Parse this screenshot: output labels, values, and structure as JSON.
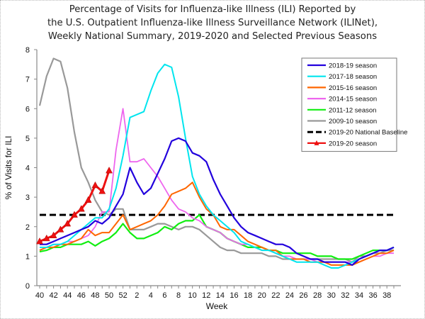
{
  "chart_data": {
    "type": "line",
    "title": [
      "Percentage of Visits for Influenza-like Illness (ILI) Reported by",
      "the U.S. Outpatient Influenza-like Illness Surveillance Network (ILINet),",
      "Weekly National Summary, 2019-2020 and Selected Previous Seasons"
    ],
    "xlabel": "Week",
    "ylabel": "% of Visits for ILI",
    "ylim": [
      0,
      8
    ],
    "yticks": [
      "0",
      "1",
      "2",
      "3",
      "4",
      "5",
      "6",
      "7",
      "8"
    ],
    "x": [
      40,
      41,
      42,
      43,
      44,
      45,
      46,
      47,
      48,
      49,
      50,
      51,
      52,
      1,
      2,
      3,
      4,
      5,
      6,
      7,
      8,
      9,
      10,
      11,
      12,
      13,
      14,
      15,
      16,
      17,
      18,
      19,
      20,
      21,
      22,
      23,
      24,
      25,
      26,
      27,
      28,
      29,
      30,
      31,
      32,
      33,
      34,
      35,
      36,
      37,
      38,
      39
    ],
    "xtick_labels": [
      "40",
      "42",
      "44",
      "46",
      "48",
      "50",
      "52",
      "2",
      "4",
      "6",
      "8",
      "10",
      "12",
      "14",
      "16",
      "18",
      "20",
      "22",
      "24",
      "26",
      "28",
      "30",
      "32",
      "34",
      "36",
      "38"
    ],
    "legend_position": "top-right",
    "series": [
      {
        "name": "2018-19 season",
        "color": "#2200dd",
        "width": 2.2,
        "values": [
          1.4,
          1.4,
          1.5,
          1.6,
          1.7,
          1.8,
          1.9,
          2.0,
          2.2,
          2.1,
          2.3,
          2.7,
          3.1,
          4.0,
          3.5,
          3.1,
          3.3,
          3.8,
          4.3,
          4.9,
          5.0,
          4.9,
          4.5,
          4.4,
          4.2,
          3.6,
          3.1,
          2.7,
          2.3,
          2.0,
          1.8,
          1.7,
          1.6,
          1.5,
          1.4,
          1.4,
          1.3,
          1.1,
          1.0,
          0.9,
          0.9,
          0.8,
          0.8,
          0.8,
          0.8,
          0.7,
          0.9,
          1.0,
          1.1,
          1.2,
          1.2,
          1.3
        ]
      },
      {
        "name": "2017-18 season",
        "color": "#00e5ee",
        "width": 2.0,
        "values": [
          1.3,
          1.3,
          1.4,
          1.4,
          1.5,
          1.7,
          1.9,
          2.1,
          2.3,
          2.3,
          2.6,
          3.3,
          4.4,
          5.7,
          5.8,
          5.9,
          6.6,
          7.2,
          7.5,
          7.4,
          6.4,
          5.0,
          3.7,
          3.1,
          2.7,
          2.4,
          2.2,
          2.0,
          1.8,
          1.5,
          1.4,
          1.3,
          1.2,
          1.2,
          1.1,
          1.0,
          0.9,
          0.8,
          0.8,
          0.8,
          0.8,
          0.7,
          0.6,
          0.6,
          0.7,
          0.8,
          0.9,
          1.0,
          1.1,
          1.2,
          1.2,
          1.3
        ]
      },
      {
        "name": "2015-16 season",
        "color": "#ff6600",
        "width": 2.0,
        "values": [
          1.2,
          1.3,
          1.3,
          1.4,
          1.4,
          1.5,
          1.6,
          1.9,
          1.7,
          1.8,
          1.8,
          2.1,
          2.4,
          1.9,
          2.0,
          2.1,
          2.2,
          2.4,
          2.7,
          3.1,
          3.2,
          3.3,
          3.5,
          3.0,
          2.6,
          2.4,
          2.0,
          1.9,
          1.9,
          1.7,
          1.5,
          1.4,
          1.3,
          1.2,
          1.2,
          1.0,
          0.9,
          0.9,
          0.9,
          0.8,
          0.8,
          0.8,
          0.7,
          0.7,
          0.7,
          0.7,
          0.8,
          0.9,
          1.0,
          1.1,
          1.1,
          1.2
        ]
      },
      {
        "name": "2014-15 season",
        "color": "#ee66ee",
        "width": 1.8,
        "values": [
          1.2,
          1.3,
          1.4,
          1.4,
          1.5,
          1.5,
          1.6,
          1.7,
          2.0,
          2.5,
          2.5,
          4.6,
          6.0,
          4.2,
          4.2,
          4.3,
          4.0,
          3.7,
          3.3,
          2.9,
          2.6,
          2.5,
          2.3,
          2.2,
          2.0,
          1.9,
          1.8,
          1.6,
          1.5,
          1.4,
          1.4,
          1.3,
          1.2,
          1.2,
          1.1,
          1.0,
          1.0,
          0.9,
          0.9,
          0.9,
          0.8,
          0.8,
          0.8,
          0.8,
          0.8,
          0.8,
          0.8,
          0.9,
          1.0,
          1.0,
          1.1,
          1.1
        ]
      },
      {
        "name": "2011-12 season",
        "color": "#11ee11",
        "width": 2.2,
        "values": [
          1.15,
          1.2,
          1.3,
          1.3,
          1.4,
          1.4,
          1.4,
          1.5,
          1.35,
          1.5,
          1.6,
          1.8,
          2.1,
          1.8,
          1.6,
          1.6,
          1.7,
          1.8,
          2.0,
          1.9,
          2.1,
          2.2,
          2.2,
          2.4,
          2.0,
          1.9,
          1.8,
          1.6,
          1.5,
          1.4,
          1.3,
          1.3,
          1.3,
          1.2,
          1.2,
          1.1,
          1.1,
          1.1,
          1.1,
          1.1,
          1.0,
          1.0,
          1.0,
          0.9,
          0.9,
          0.9,
          1.0,
          1.1,
          1.2,
          1.2,
          1.2,
          1.3
        ]
      },
      {
        "name": "2009-10 season",
        "color": "#999999",
        "width": 2.2,
        "values": [
          6.1,
          7.1,
          7.7,
          7.6,
          6.7,
          5.2,
          4.0,
          3.5,
          2.9,
          2.5,
          2.4,
          2.6,
          2.6,
          1.9,
          1.9,
          1.9,
          2.0,
          2.1,
          2.1,
          2.0,
          1.9,
          2.0,
          2.0,
          1.9,
          1.7,
          1.5,
          1.3,
          1.2,
          1.2,
          1.1,
          1.1,
          1.1,
          1.1,
          1.0,
          1.0,
          0.9,
          0.9,
          0.9,
          0.9,
          0.9,
          0.9,
          0.9,
          0.9,
          0.9,
          0.9,
          0.8,
          1.0,
          1.0,
          1.1,
          1.1,
          1.2,
          1.2
        ]
      }
    ],
    "baseline": {
      "name": "2019-20 National Baseline",
      "value": 2.4,
      "color": "#000000"
    },
    "current": {
      "name": "2019-20 season",
      "color": "#ee1111",
      "values": [
        1.5,
        1.6,
        1.7,
        1.9,
        2.1,
        2.4,
        2.6,
        2.9,
        3.4,
        3.2,
        3.9
      ]
    }
  }
}
